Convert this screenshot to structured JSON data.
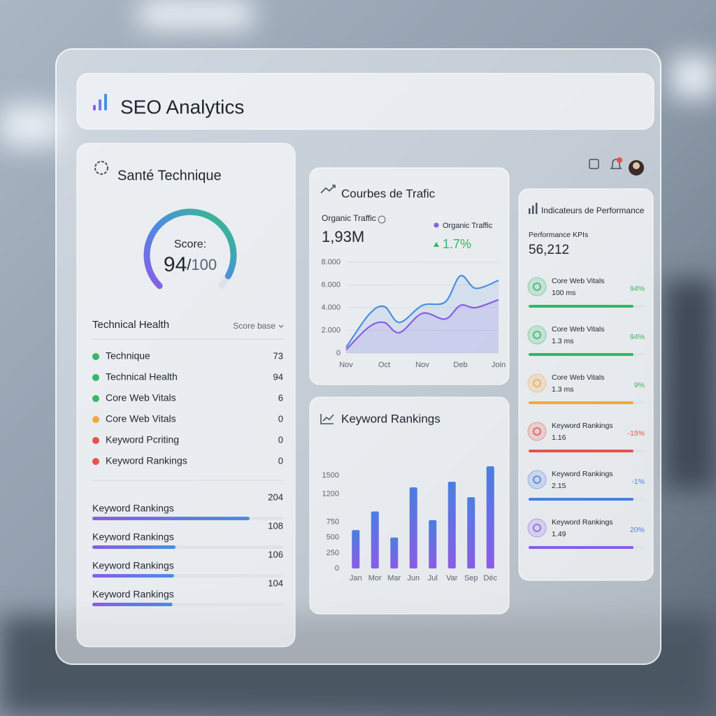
{
  "header": {
    "title": "SEO Analytics"
  },
  "health": {
    "title": "Santé Technique",
    "score_label": "Score:",
    "score": 94,
    "separator": "/",
    "score_max": 100,
    "section_title": "Technical Health",
    "dropdown": "Score base",
    "items": [
      {
        "label": "Technique",
        "value": 73,
        "color": "#34b86a"
      },
      {
        "label": "Technical Health",
        "value": 94,
        "color": "#34b86a"
      },
      {
        "label": "Core Web Vitals",
        "value": 6,
        "color": "#34b86a"
      },
      {
        "label": "Core Web Vitals",
        "value": 0,
        "color": "#f2a93b"
      },
      {
        "label": "Keyword Pcriting",
        "value": 0,
        "color": "#e5534b"
      },
      {
        "label": "Keyword Rankings",
        "value": 0,
        "color": "#e5534b"
      }
    ],
    "rankings": [
      {
        "label": "Keyword Rankings",
        "value": 204
      },
      {
        "label": "Keyword Rankings",
        "value": 108
      },
      {
        "label": "Keyword Rankings",
        "value": 106
      },
      {
        "label": "Keyword Rankings",
        "value": 104
      }
    ]
  },
  "traffic": {
    "stat_label": "Organic Traffic",
    "stat_value": "1,93M",
    "legend": "Organic Traffic",
    "change": "1.7%"
  },
  "chart_data": [
    {
      "type": "line",
      "title": "Courbes de Trafic",
      "x": [
        0,
        0.6,
        1.0,
        1.4,
        2.0,
        2.6,
        3.0,
        3.4,
        4.0
      ],
      "xlim": [
        0,
        4
      ],
      "xticks": [
        {
          "value": 0,
          "label": "Nov"
        },
        {
          "value": 1,
          "label": "Oct"
        },
        {
          "value": 2,
          "label": "Nov"
        },
        {
          "value": 3,
          "label": "Deb"
        },
        {
          "value": 4,
          "label": "Join"
        }
      ],
      "ylim": [
        0,
        8000
      ],
      "yticks": [
        0,
        {
          "value": 2000,
          "label": "2.000"
        },
        {
          "value": 4000,
          "label": "4.000"
        },
        {
          "value": 6000,
          "label": "6.000"
        },
        {
          "value": 8000,
          "label": "8.000"
        }
      ],
      "grid": true,
      "series": [
        {
          "color": "#4a8fe0",
          "values": [
            500,
            3400,
            4100,
            2700,
            4200,
            4500,
            6800,
            5700,
            6400
          ]
        },
        {
          "color": "#8a5ce6",
          "values": [
            300,
            2300,
            2700,
            1800,
            3500,
            3000,
            4200,
            4000,
            4700
          ]
        }
      ]
    },
    {
      "type": "bar",
      "title": "Keyword Rankings",
      "categories": [
        "Jan",
        "Mor",
        "Mar",
        "Jun",
        "Jul",
        "Var",
        "Sep",
        "Déc"
      ],
      "values": [
        620,
        920,
        500,
        1310,
        780,
        1400,
        1150,
        1650
      ],
      "ylim": [
        0,
        1750
      ],
      "yticks": [
        0,
        250,
        500,
        750,
        1200,
        1500
      ],
      "color": "#4a7fe0"
    }
  ],
  "kpi": {
    "title": "Indicateurs de Performance",
    "subtitle": "Performance KPIs",
    "value": "56,212",
    "items": [
      {
        "name": "Core Web Vitals",
        "value": "100 ms",
        "pct": "94%",
        "color": "#2fb865",
        "pct_color": "#2fb865"
      },
      {
        "name": "Core Web Vitals",
        "value": "1.3 ms",
        "pct": "94%",
        "color": "#2fb865",
        "pct_color": "#2fb865"
      },
      {
        "name": "Core Web Vitals",
        "value": "1.3 ms",
        "pct": "9%",
        "color": "#f2a93b",
        "pct_color": "#2fb865"
      },
      {
        "name": "Keyword Rankings",
        "value": "1.16",
        "pct": "-15%",
        "color": "#e5534b",
        "pct_color": "#e5534b"
      },
      {
        "name": "Keyword Rankings",
        "value": "2.15",
        "pct": "-1%",
        "color": "#4a7fe0",
        "pct_color": "#4a7fe0"
      },
      {
        "name": "Keyword Rankings",
        "value": "1.49",
        "pct": "20%",
        "color": "#8a5ce6",
        "pct_color": "#4a7fe0"
      }
    ]
  }
}
